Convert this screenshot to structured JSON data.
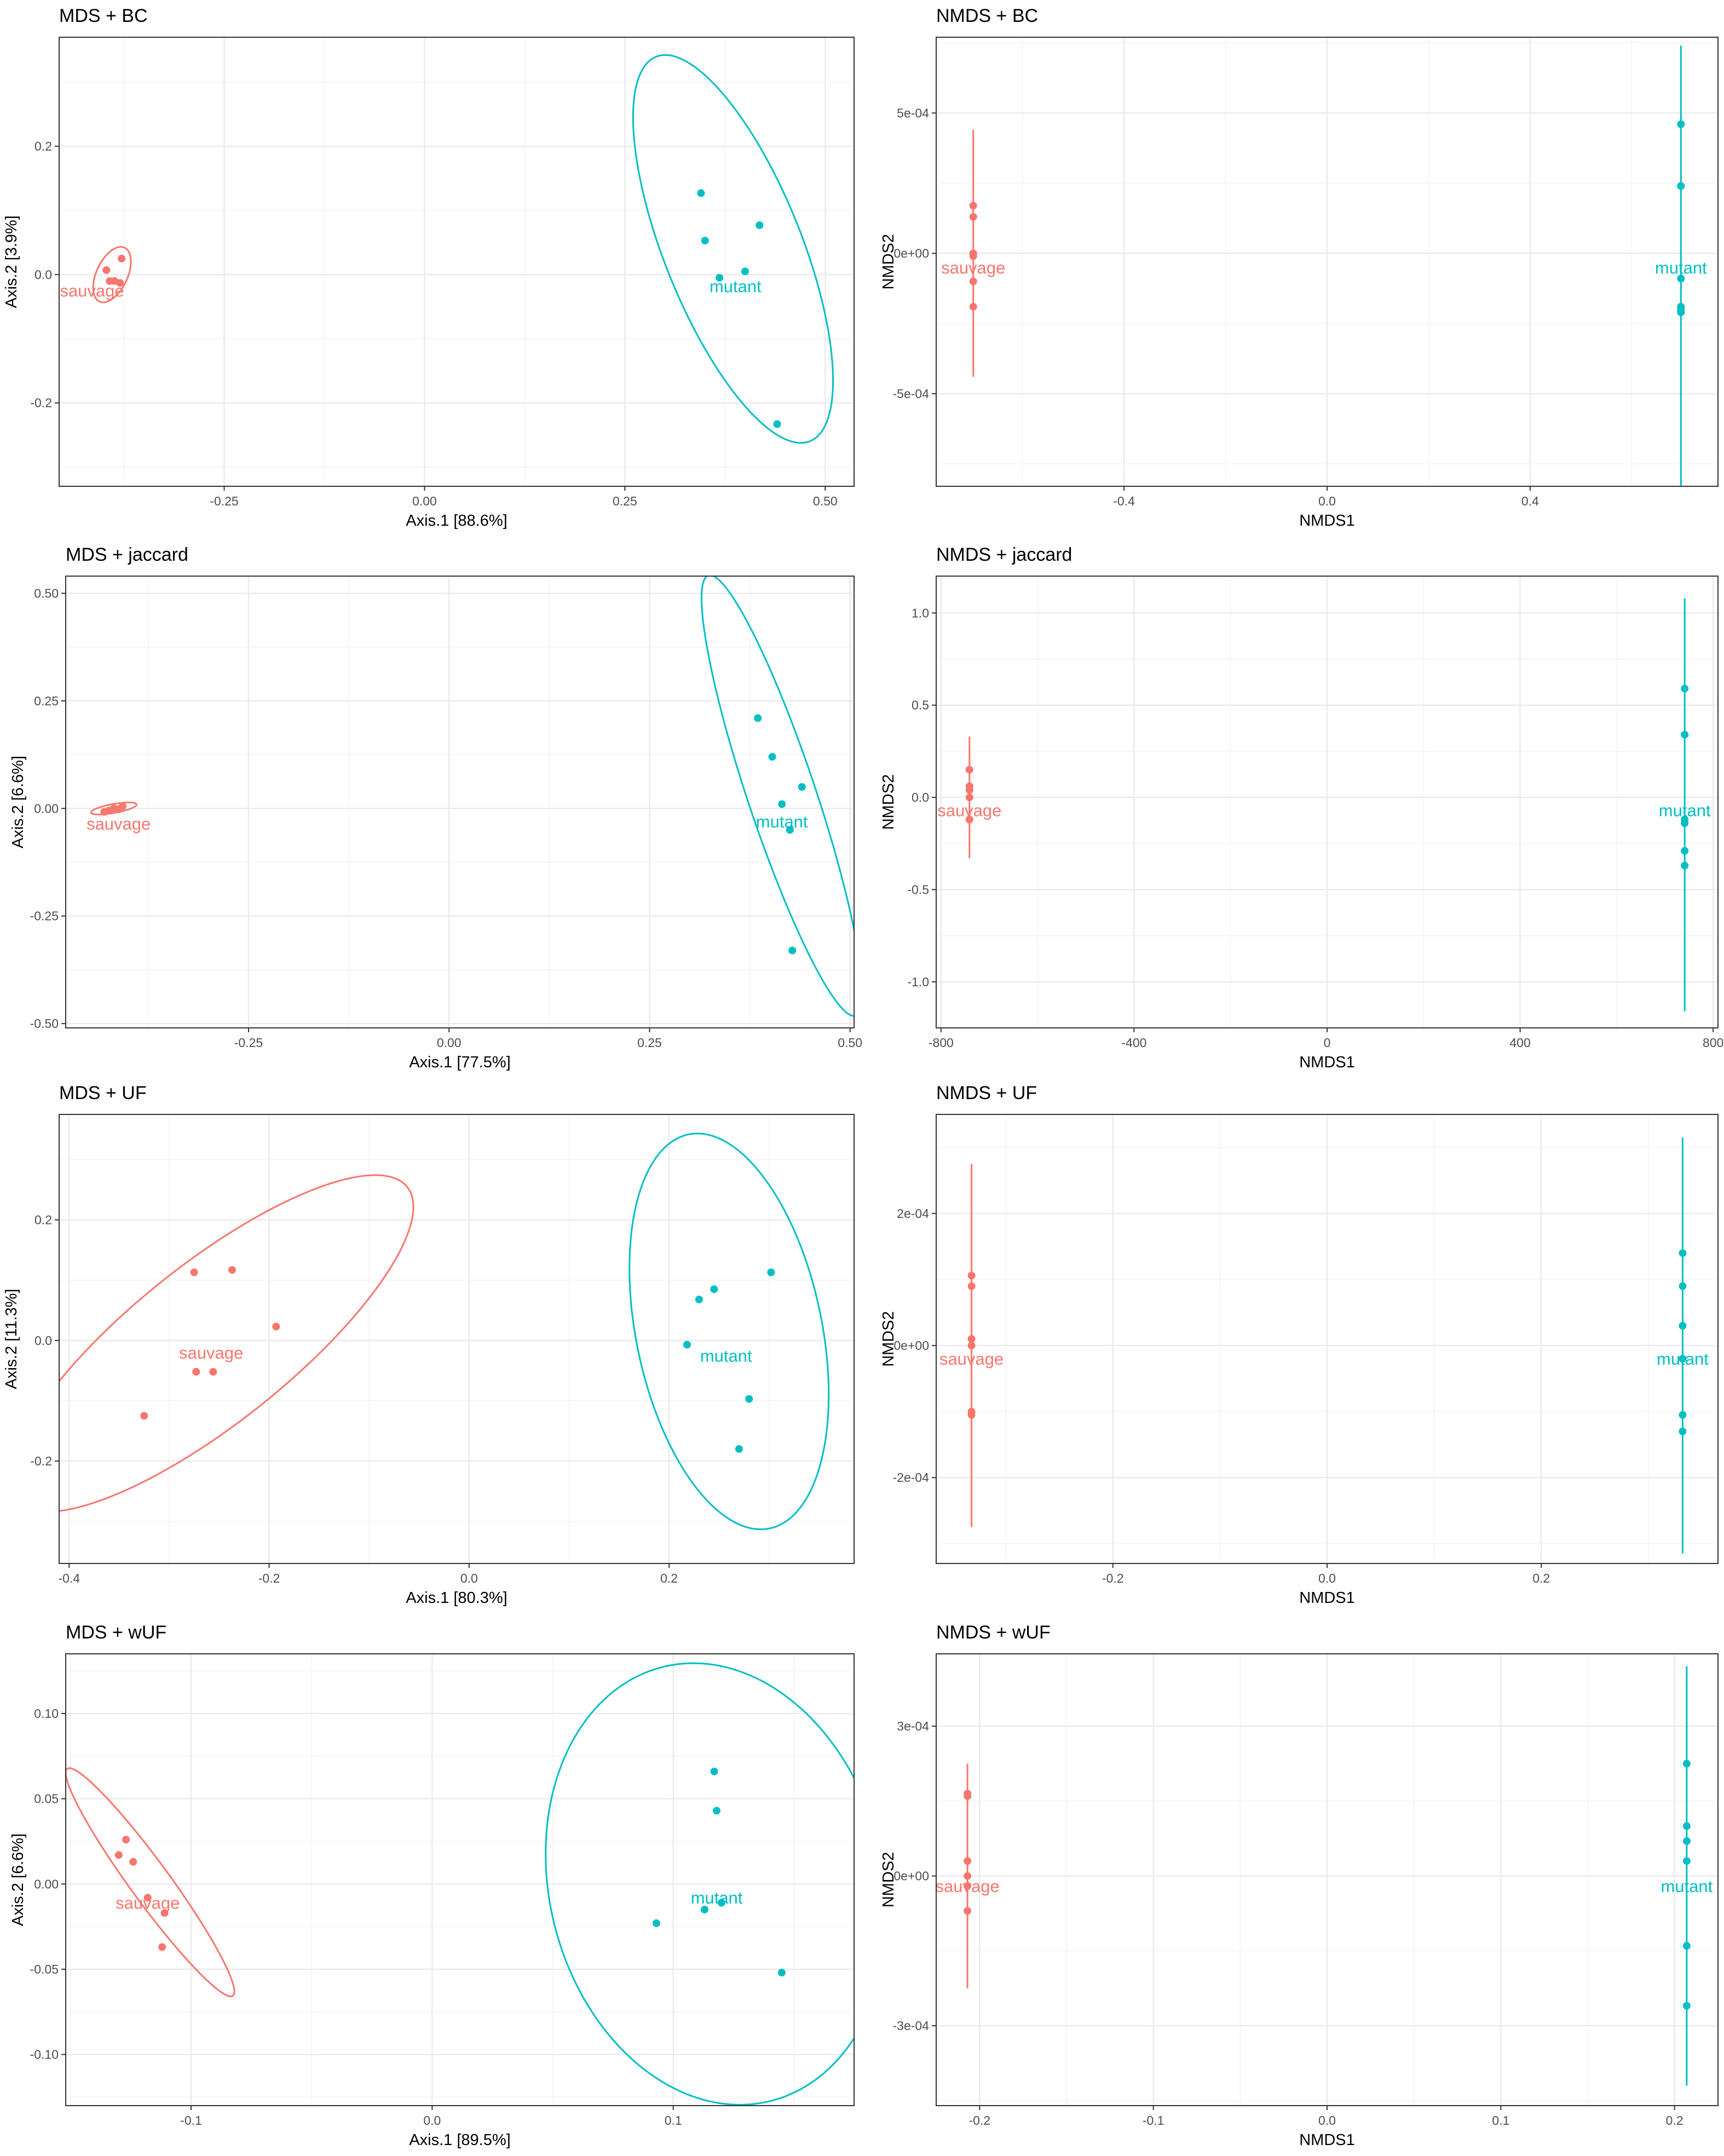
{
  "colors": {
    "sauvage": "#F8766D",
    "mutant": "#00BFC4",
    "grid_major": "#EBEBEB",
    "grid_minor": "#F3F3F3",
    "frame": "#333333"
  },
  "chart_data": [
    {
      "type": "scatter",
      "title": "MDS + BC",
      "xlabel": "Axis.1   [88.6%]",
      "ylabel": "Axis.2   [3.9%]",
      "xlim": [
        -0.456,
        0.536
      ],
      "ylim": [
        -0.33,
        0.37
      ],
      "xticks": [
        -0.25,
        0.0,
        0.25,
        0.5
      ],
      "xtick_labels": [
        "-0.25",
        "0.00",
        "0.25",
        "0.50"
      ],
      "yticks": [
        -0.2,
        0.0,
        0.2
      ],
      "ytick_labels": [
        "-0.2",
        "0.0",
        "0.2"
      ],
      "series": [
        {
          "name": "sauvage",
          "label": "sauvage",
          "label_pos": [
            -0.415,
            -0.025
          ],
          "points": [
            [
              -0.397,
              0.007
            ],
            [
              -0.393,
              -0.01
            ],
            [
              -0.387,
              -0.01
            ],
            [
              -0.38,
              -0.013
            ],
            [
              -0.378,
              0.025
            ]
          ],
          "ellipse": {
            "cx": -0.39,
            "cy": 0.0,
            "a": 0.045,
            "b": 0.02,
            "angle": 72
          }
        },
        {
          "name": "mutant",
          "label": "mutant",
          "label_pos": [
            0.388,
            -0.018
          ],
          "points": [
            [
              0.345,
              0.127
            ],
            [
              0.35,
              0.053
            ],
            [
              0.368,
              -0.005
            ],
            [
              0.4,
              0.005
            ],
            [
              0.418,
              0.077
            ],
            [
              0.44,
              -0.233
            ]
          ],
          "ellipse": {
            "cx": 0.385,
            "cy": 0.04,
            "a": 0.315,
            "b": 0.088,
            "angle": -73
          }
        }
      ]
    },
    {
      "type": "scatter",
      "title": "NMDS + BC",
      "xlabel": "NMDS1",
      "ylabel": "NMDS2",
      "xlim": [
        -0.77,
        0.77
      ],
      "ylim": [
        -0.00083,
        0.00077
      ],
      "xticks": [
        -0.4,
        0.0,
        0.4
      ],
      "xtick_labels": [
        "-0.4",
        "0.0",
        "0.4"
      ],
      "yticks": [
        -0.0005,
        0.0,
        0.0005
      ],
      "ytick_labels": [
        "-5e-04",
        "0e+00",
        "5e-04"
      ],
      "series": [
        {
          "name": "sauvage",
          "label": "sauvage",
          "label_pos": [
            -0.697,
            -5e-05
          ],
          "points": [
            [
              -0.697,
              0.00017
            ],
            [
              -0.697,
              0.00013
            ],
            [
              -0.697,
              0.0
            ],
            [
              -0.697,
              -1e-05
            ],
            [
              -0.697,
              -0.0001
            ],
            [
              -0.697,
              -0.00019
            ]
          ],
          "ellipse": {
            "cx": -0.697,
            "cy": 0.0,
            "a": 0.00044,
            "b": 0.0,
            "angle": 90
          }
        },
        {
          "name": "mutant",
          "label": "mutant",
          "label_pos": [
            0.697,
            -5e-05
          ],
          "points": [
            [
              0.697,
              0.00046
            ],
            [
              0.697,
              0.00024
            ],
            [
              0.697,
              -9e-05
            ],
            [
              0.697,
              -0.00019
            ],
            [
              0.697,
              -0.0002
            ],
            [
              0.697,
              -0.00021
            ]
          ],
          "ellipse": {
            "cx": 0.697,
            "cy": -0.0001,
            "a": 0.00084,
            "b": 0.0,
            "angle": 90
          }
        }
      ]
    },
    {
      "type": "scatter",
      "title": "MDS + jaccard",
      "xlabel": "Axis.1   [77.5%]",
      "ylabel": "Axis.2   [6.6%]",
      "xlim": [
        -0.478,
        0.505
      ],
      "ylim": [
        -0.51,
        0.54
      ],
      "xticks": [
        -0.25,
        0.0,
        0.25,
        0.5
      ],
      "xtick_labels": [
        "-0.25",
        "0.00",
        "0.25",
        "0.50"
      ],
      "yticks": [
        -0.5,
        -0.25,
        0.0,
        0.25,
        0.5
      ],
      "ytick_labels": [
        "-0.50",
        "-0.25",
        "0.00",
        "0.25",
        "0.50"
      ],
      "series": [
        {
          "name": "sauvage",
          "label": "sauvage",
          "label_pos": [
            -0.412,
            -0.035
          ],
          "points": [
            [
              -0.43,
              -0.008
            ],
            [
              -0.424,
              -0.005
            ],
            [
              -0.418,
              0.0
            ],
            [
              -0.412,
              -0.002
            ],
            [
              -0.407,
              0.005
            ]
          ],
          "ellipse": {
            "cx": -0.418,
            "cy": 0.0,
            "a": 0.03,
            "b": 0.01,
            "angle": 20
          }
        },
        {
          "name": "mutant",
          "label": "mutant",
          "label_pos": [
            0.415,
            -0.03
          ],
          "points": [
            [
              0.385,
              0.21
            ],
            [
              0.403,
              0.12
            ],
            [
              0.415,
              0.01
            ],
            [
              0.425,
              -0.05
            ],
            [
              0.44,
              0.05
            ],
            [
              0.428,
              -0.33
            ]
          ],
          "ellipse": {
            "cx": 0.415,
            "cy": 0.03,
            "a": 0.52,
            "b": 0.044,
            "angle": -80
          }
        }
      ]
    },
    {
      "type": "scatter",
      "title": "NMDS + jaccard",
      "xlabel": "NMDS1",
      "ylabel": "NMDS2",
      "xlim": [
        -810,
        810
      ],
      "ylim": [
        -1.25,
        1.2
      ],
      "xticks": [
        -800,
        -400,
        0,
        400,
        800
      ],
      "xtick_labels": [
        "-800",
        "-400",
        "0",
        "400",
        "800"
      ],
      "yticks": [
        -1.0,
        -0.5,
        0.0,
        0.5,
        1.0
      ],
      "ytick_labels": [
        "-1.0",
        "-0.5",
        "0.0",
        "0.5",
        "1.0"
      ],
      "series": [
        {
          "name": "sauvage",
          "label": "sauvage",
          "label_pos": [
            -741,
            -0.07
          ],
          "points": [
            [
              -741,
              0.15
            ],
            [
              -741,
              0.06
            ],
            [
              -741,
              0.04
            ],
            [
              -741,
              0.0
            ],
            [
              -741,
              -0.12
            ]
          ],
          "ellipse": {
            "cx": -741,
            "cy": 0.0,
            "a": 0.33,
            "b": 0.0,
            "angle": 90
          }
        },
        {
          "name": "mutant",
          "label": "mutant",
          "label_pos": [
            741,
            -0.07
          ],
          "points": [
            [
              741,
              0.59
            ],
            [
              741,
              0.34
            ],
            [
              741,
              -0.12
            ],
            [
              741,
              -0.14
            ],
            [
              741,
              -0.29
            ],
            [
              741,
              -0.37
            ]
          ],
          "ellipse": {
            "cx": 741,
            "cy": -0.04,
            "a": 1.12,
            "b": 0.0,
            "angle": 90
          }
        }
      ]
    },
    {
      "type": "scatter",
      "title": "MDS + UF",
      "xlabel": "Axis.1   [80.3%]",
      "ylabel": "Axis.2   [11.3%]",
      "xlim": [
        -0.41,
        0.385
      ],
      "ylim": [
        -0.37,
        0.375
      ],
      "xticks": [
        -0.4,
        -0.2,
        0.0,
        0.2
      ],
      "xtick_labels": [
        "-0.4",
        "-0.2",
        "0.0",
        "0.2"
      ],
      "yticks": [
        -0.2,
        0.0,
        0.2
      ],
      "ytick_labels": [
        "-0.2",
        "0.0",
        "0.2"
      ],
      "series": [
        {
          "name": "sauvage",
          "label": "sauvage",
          "label_pos": [
            -0.258,
            -0.02
          ],
          "points": [
            [
              -0.275,
              0.113
            ],
            [
              -0.237,
              0.117
            ],
            [
              -0.193,
              0.023
            ],
            [
              -0.273,
              -0.052
            ],
            [
              -0.256,
              -0.052
            ],
            [
              -0.325,
              -0.125
            ]
          ],
          "ellipse": {
            "cx": -0.258,
            "cy": -0.005,
            "a": 0.33,
            "b": 0.1,
            "angle": 56
          }
        },
        {
          "name": "mutant",
          "label": "mutant",
          "label_pos": [
            0.257,
            -0.025
          ],
          "points": [
            [
              0.302,
              0.113
            ],
            [
              0.245,
              0.085
            ],
            [
              0.23,
              0.068
            ],
            [
              0.218,
              -0.007
            ],
            [
              0.28,
              -0.097
            ],
            [
              0.27,
              -0.18
            ]
          ],
          "ellipse": {
            "cx": 0.26,
            "cy": 0.015,
            "a": 0.33,
            "b": 0.094,
            "angle": -84
          }
        }
      ]
    },
    {
      "type": "scatter",
      "title": "NMDS + UF",
      "xlabel": "NMDS1",
      "ylabel": "NMDS2",
      "xlim": [
        -0.365,
        0.365
      ],
      "ylim": [
        -0.00033,
        0.00035
      ],
      "xticks": [
        -0.2,
        0.0,
        0.2
      ],
      "xtick_labels": [
        "-0.2",
        "0.0",
        "0.2"
      ],
      "yticks": [
        -0.0002,
        0.0,
        0.0002
      ],
      "ytick_labels": [
        "-2e-04",
        "0e+00",
        "2e-04"
      ],
      "series": [
        {
          "name": "sauvage",
          "label": "sauvage",
          "label_pos": [
            -0.332,
            -2e-05
          ],
          "points": [
            [
              -0.332,
              0.000106
            ],
            [
              -0.332,
              9e-05
            ],
            [
              -0.332,
              1e-05
            ],
            [
              -0.332,
              0.0
            ],
            [
              -0.332,
              -0.0001
            ],
            [
              -0.332,
              -0.000105
            ]
          ],
          "ellipse": {
            "cx": -0.332,
            "cy": 0.0,
            "a": 0.000275,
            "b": 0.0,
            "angle": 90
          }
        },
        {
          "name": "mutant",
          "label": "mutant",
          "label_pos": [
            0.332,
            -2e-05
          ],
          "points": [
            [
              0.332,
              0.00014
            ],
            [
              0.332,
              9e-05
            ],
            [
              0.332,
              3e-05
            ],
            [
              0.332,
              -2e-05
            ],
            [
              0.332,
              -0.000105
            ],
            [
              0.332,
              -0.00013
            ]
          ],
          "ellipse": {
            "cx": 0.332,
            "cy": 0.0,
            "a": 0.000315,
            "b": 0.0,
            "angle": 90
          }
        }
      ]
    },
    {
      "type": "scatter",
      "title": "MDS + wUF",
      "xlabel": "Axis.1   [89.5%]",
      "ylabel": "Axis.2   [6.6%]",
      "xlim": [
        -0.152,
        0.175
      ],
      "ylim": [
        -0.13,
        0.135
      ],
      "xticks": [
        -0.1,
        0.0,
        0.1
      ],
      "xtick_labels": [
        "-0.1",
        "0.0",
        "0.1"
      ],
      "yticks": [
        -0.1,
        -0.05,
        0.0,
        0.05,
        0.1
      ],
      "ytick_labels": [
        "-0.10",
        "-0.05",
        "0.00",
        "0.05",
        "0.10"
      ],
      "series": [
        {
          "name": "sauvage",
          "label": "sauvage",
          "label_pos": [
            -0.118,
            -0.011
          ],
          "points": [
            [
              -0.127,
              0.026
            ],
            [
              -0.13,
              0.017
            ],
            [
              -0.124,
              0.013
            ],
            [
              -0.118,
              -0.008
            ],
            [
              -0.111,
              -0.017
            ],
            [
              -0.112,
              -0.037
            ]
          ],
          "ellipse": {
            "cx": -0.117,
            "cy": 0.001,
            "a": 0.075,
            "b": 0.009,
            "angle": -63
          }
        },
        {
          "name": "mutant",
          "label": "mutant",
          "label_pos": [
            0.118,
            -0.008
          ],
          "points": [
            [
              0.117,
              0.066
            ],
            [
              0.118,
              0.043
            ],
            [
              0.093,
              -0.023
            ],
            [
              0.113,
              -0.015
            ],
            [
              0.12,
              -0.011
            ],
            [
              0.145,
              -0.052
            ]
          ],
          "ellipse": {
            "cx": 0.118,
            "cy": 0.0,
            "a": 0.13,
            "b": 0.07,
            "angle": -84
          }
        }
      ]
    },
    {
      "type": "scatter",
      "title": "NMDS + wUF",
      "xlabel": "NMDS1",
      "ylabel": "NMDS2",
      "xlim": [
        -0.225,
        0.225
      ],
      "ylim": [
        -0.00046,
        0.000445
      ],
      "xticks": [
        -0.2,
        -0.1,
        0.0,
        0.1,
        0.2
      ],
      "xtick_labels": [
        "-0.2",
        "-0.1",
        "0.0",
        "0.1",
        "0.2"
      ],
      "yticks": [
        -0.0003,
        0.0,
        0.0003
      ],
      "ytick_labels": [
        "-3e-04",
        "0e+00",
        "3e-04"
      ],
      "series": [
        {
          "name": "sauvage",
          "label": "sauvage",
          "label_pos": [
            -0.207,
            -2e-05
          ],
          "points": [
            [
              -0.207,
              0.000165
            ],
            [
              -0.207,
              0.00016
            ],
            [
              -0.207,
              3e-05
            ],
            [
              -0.207,
              0.0
            ],
            [
              -0.207,
              -2e-05
            ],
            [
              -0.207,
              -7e-05
            ]
          ],
          "ellipse": {
            "cx": -0.207,
            "cy": 0.0,
            "a": 0.000225,
            "b": 0.0,
            "angle": 90
          }
        },
        {
          "name": "mutant",
          "label": "mutant",
          "label_pos": [
            0.207,
            -2e-05
          ],
          "points": [
            [
              0.207,
              0.000225
            ],
            [
              0.207,
              0.0001
            ],
            [
              0.207,
              7e-05
            ],
            [
              0.207,
              3e-05
            ],
            [
              0.207,
              -0.00014
            ],
            [
              0.207,
              -0.00026
            ]
          ],
          "ellipse": {
            "cx": 0.207,
            "cy": 0.0,
            "a": 0.00042,
            "b": 0.0,
            "angle": 90
          }
        }
      ]
    }
  ]
}
